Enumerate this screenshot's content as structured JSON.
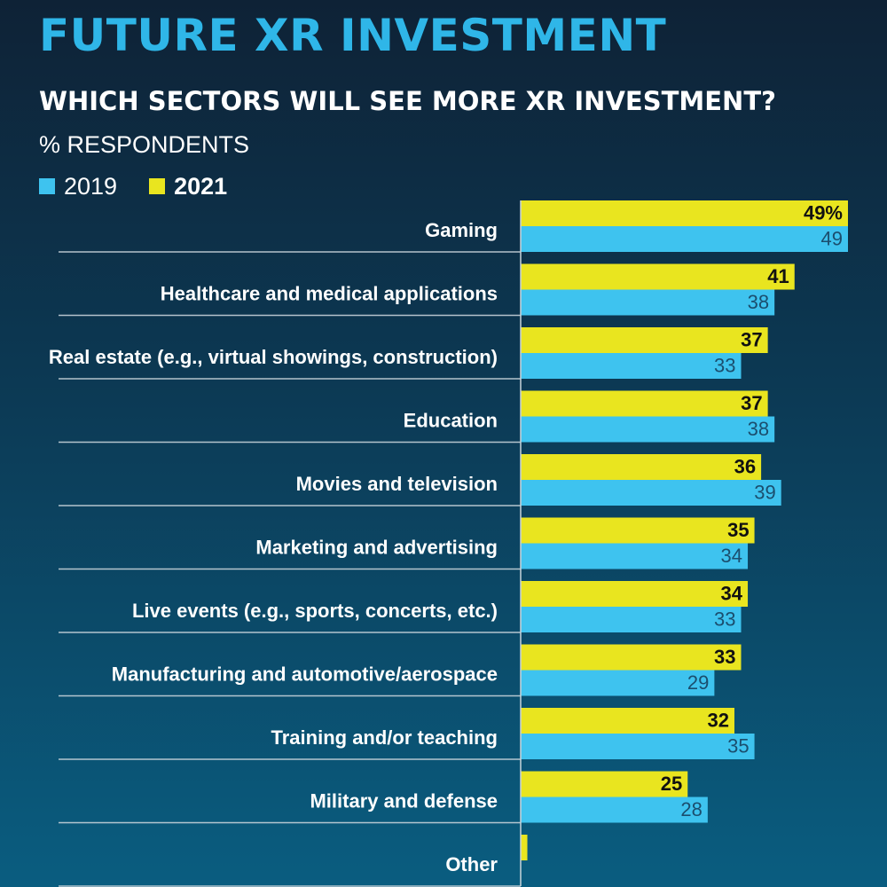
{
  "chart_data": {
    "type": "bar",
    "orientation": "horizontal",
    "title": "FUTURE XR INVESTMENT",
    "subtitle": "WHICH SECTORS WILL SEE MORE XR INVESTMENT?",
    "units_label": "% RESPONDENTS",
    "legend_placement": "top-left",
    "categories": [
      "Gaming",
      "Healthcare and medical applications",
      "Real estate (e.g., virtual showings, construction)",
      "Education",
      "Movies and television",
      "Marketing and advertising",
      "Live events (e.g., sports, concerts, etc.)",
      "Manufacturing and automotive/aerospace",
      "Training and/or teaching",
      "Military and defense",
      "Other"
    ],
    "series": [
      {
        "name": "2021",
        "color": "#e9e51f",
        "values": [
          49,
          41,
          37,
          37,
          36,
          35,
          34,
          33,
          32,
          25,
          1
        ],
        "labels": [
          "49%",
          "41",
          "37",
          "37",
          "36",
          "35",
          "34",
          "33",
          "32",
          "25",
          ""
        ]
      },
      {
        "name": "2019",
        "color": "#3ec3ef",
        "values": [
          49,
          38,
          33,
          38,
          39,
          34,
          33,
          29,
          35,
          28,
          null
        ],
        "labels": [
          "49",
          "38",
          "33",
          "38",
          "39",
          "34",
          "33",
          "29",
          "35",
          "28",
          ""
        ]
      }
    ],
    "xlim": [
      0,
      49
    ],
    "grid": false
  }
}
